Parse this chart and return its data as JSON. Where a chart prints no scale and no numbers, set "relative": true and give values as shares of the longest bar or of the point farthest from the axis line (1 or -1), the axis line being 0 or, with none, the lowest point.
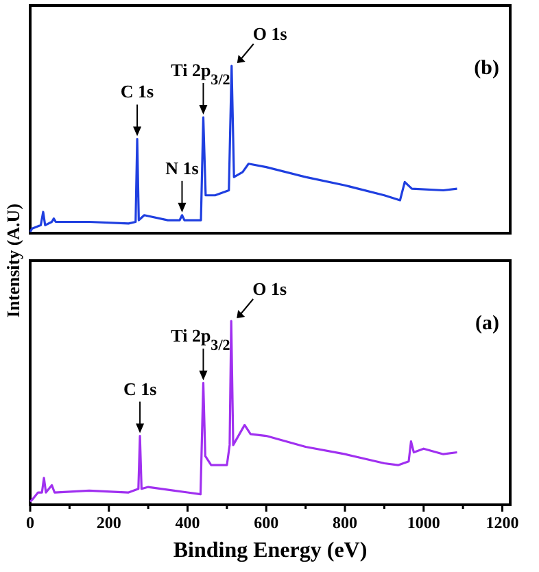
{
  "chart_data": [
    {
      "type": "line",
      "relative": true,
      "ylabel": "Intensity (A.U)",
      "xlim": [
        0,
        1220
      ],
      "tick_labels": false,
      "annotations": [
        "(b)",
        {
          "text": "C 1s",
          "x": 272,
          "y": 0.56
        },
        {
          "text": "N 1s",
          "x": 386,
          "y": 0.1
        },
        {
          "text": "Ti 2p$_{3/2}$",
          "x": 440,
          "y": 0.69
        },
        {
          "text": "O 1s",
          "x": 512,
          "y": 1.0
        }
      ],
      "series": [
        {
          "color": "#1f3fe0",
          "x": [
            0,
            5,
            27,
            33,
            38,
            55,
            60,
            65,
            150,
            250,
            268,
            272,
            276,
            290,
            350,
            380,
            386,
            392,
            434,
            440,
            446,
            470,
            505,
            512,
            518,
            540,
            555,
            600,
            700,
            800,
            900,
            940,
            952,
            970,
            1050,
            1085
          ],
          "values": [
            0,
            0.02,
            0.04,
            0.12,
            0.04,
            0.06,
            0.08,
            0.06,
            0.06,
            0.05,
            0.06,
            0.56,
            0.07,
            0.1,
            0.07,
            0.07,
            0.1,
            0.07,
            0.07,
            0.69,
            0.22,
            0.22,
            0.25,
            1.0,
            0.33,
            0.36,
            0.41,
            0.39,
            0.33,
            0.28,
            0.22,
            0.19,
            0.3,
            0.26,
            0.25,
            0.26
          ]
        }
      ]
    },
    {
      "type": "line",
      "relative": true,
      "xlabel": "Binding Energy (eV)",
      "xlim": [
        0,
        1220
      ],
      "xticks": [
        0,
        {
          "value": 100,
          "label": null
        },
        200,
        {
          "value": 300,
          "label": null
        },
        400,
        {
          "value": 500,
          "label": null
        },
        600,
        {
          "value": 700,
          "label": null
        },
        800,
        {
          "value": 900,
          "label": null
        },
        1000,
        {
          "value": 1100,
          "label": null
        },
        1200
      ],
      "tick_labels": "x",
      "annotations": [
        "(a)",
        {
          "text": "C 1s",
          "x": 279,
          "y": 0.37
        },
        {
          "text": "Ti 2p$_{3/2}$",
          "x": 440,
          "y": 0.66
        },
        {
          "text": "O 1s",
          "x": 511,
          "y": 1.0
        }
      ],
      "series": [
        {
          "color": "#a030f0",
          "x": [
            0,
            5,
            20,
            30,
            35,
            40,
            55,
            62,
            150,
            250,
            275,
            279,
            283,
            300,
            400,
            433,
            440,
            445,
            460,
            500,
            507,
            511,
            516,
            545,
            560,
            600,
            700,
            800,
            900,
            935,
            962,
            968,
            975,
            1000,
            1050,
            1085
          ],
          "values": [
            0.01,
            0.02,
            0.06,
            0.06,
            0.14,
            0.06,
            0.1,
            0.06,
            0.07,
            0.06,
            0.08,
            0.37,
            0.08,
            0.09,
            0.06,
            0.05,
            0.66,
            0.26,
            0.21,
            0.21,
            0.32,
            1.0,
            0.32,
            0.43,
            0.38,
            0.37,
            0.31,
            0.27,
            0.22,
            0.21,
            0.23,
            0.34,
            0.28,
            0.3,
            0.27,
            0.28
          ]
        }
      ]
    }
  ]
}
